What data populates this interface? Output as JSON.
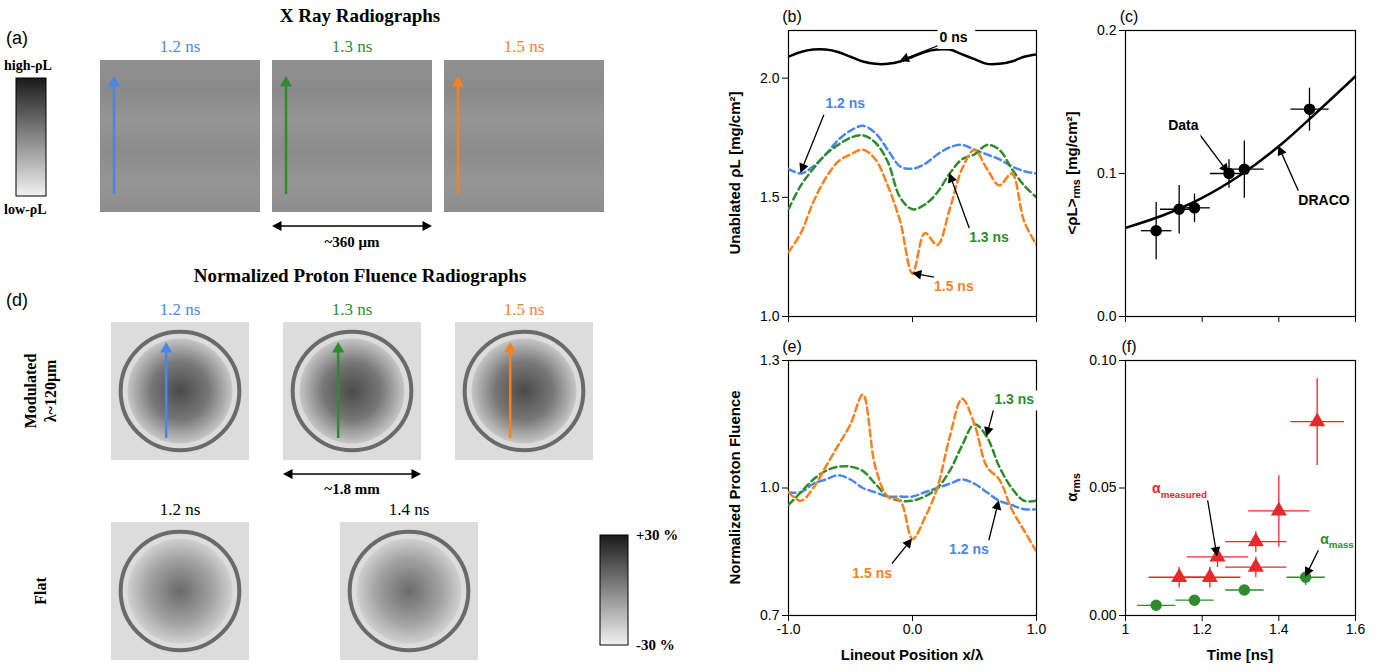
{
  "figure": {
    "panel_a": {
      "letter": "(a)",
      "title": "X Ray Radiographs",
      "scale_high": "high-ρL",
      "scale_low": "low-ρL",
      "images": [
        {
          "label": "1.2 ns",
          "color": "#4a86e8"
        },
        {
          "label": "1.3 ns",
          "color": "#2e8b2e"
        },
        {
          "label": "1.5 ns",
          "color": "#f5821f"
        }
      ],
      "dimension": "~360 μm"
    },
    "panel_d": {
      "letter": "(d)",
      "title": "Normalized Proton Fluence Radiographs",
      "rows": [
        {
          "label": "Modulated λ~120μm",
          "images": [
            {
              "label": "1.2 ns",
              "color": "#4a86e8"
            },
            {
              "label": "1.3 ns",
              "color": "#2e8b2e"
            },
            {
              "label": "1.5 ns",
              "color": "#f5821f"
            }
          ]
        },
        {
          "label": "Flat",
          "images": [
            {
              "label": "1.2 ns",
              "color": "#000000"
            },
            {
              "label": "1.4 ns",
              "color": "#000000"
            }
          ]
        }
      ],
      "dimension": "~1.8 mm",
      "colorbar": {
        "range": [
          -30,
          30
        ],
        "ticks": [
          {
            "value": 30,
            "label": "+30 %"
          },
          {
            "value": -30,
            "label": "-30 %"
          }
        ]
      }
    }
  },
  "chart_data": [
    {
      "letter": "(b)",
      "type": "line",
      "ylabel": {
        "text": "Unablated ρL",
        "unit": "[mg/cm²]"
      },
      "xlim": [
        -1,
        1
      ],
      "xticks": [
        -1,
        0,
        1
      ],
      "ylim": [
        1.0,
        2.2
      ],
      "yticks": [
        {
          "value": 1,
          "label": "1.0"
        },
        1.5,
        {
          "value": 2,
          "label": "2.0"
        }
      ],
      "tick_labels": "y",
      "x": [
        -1,
        -0.9,
        -0.8,
        -0.7,
        -0.6,
        -0.5,
        -0.4,
        -0.3,
        -0.2,
        -0.1,
        0,
        0.1,
        0.2,
        0.3,
        0.4,
        0.5,
        0.6,
        0.7,
        0.8,
        0.9,
        1
      ],
      "series": [
        {
          "name": "0 ns",
          "color": "#000000",
          "line_style": "solid",
          "values": [
            2.09,
            2.11,
            2.12,
            2.12,
            2.11,
            2.09,
            2.07,
            2.06,
            2.06,
            2.07,
            2.09,
            2.11,
            2.12,
            2.12,
            2.1,
            2.08,
            2.06,
            2.06,
            2.07,
            2.09,
            2.1
          ]
        },
        {
          "name": "1.2 ns",
          "color": "#4a86e8",
          "line_style": "dashed",
          "values": [
            1.62,
            1.6,
            1.63,
            1.68,
            1.74,
            1.78,
            1.8,
            1.77,
            1.7,
            1.63,
            1.62,
            1.64,
            1.68,
            1.71,
            1.72,
            1.7,
            1.68,
            1.66,
            1.63,
            1.61,
            1.6
          ]
        },
        {
          "name": "1.3 ns",
          "color": "#2e8b2e",
          "line_style": "dashed",
          "values": [
            1.45,
            1.55,
            1.62,
            1.68,
            1.72,
            1.75,
            1.76,
            1.73,
            1.65,
            1.5,
            1.45,
            1.47,
            1.52,
            1.6,
            1.66,
            1.68,
            1.72,
            1.7,
            1.62,
            1.55,
            1.5
          ]
        },
        {
          "name": "1.5 ns",
          "color": "#f5821f",
          "line_style": "dashed",
          "values": [
            1.27,
            1.35,
            1.48,
            1.58,
            1.65,
            1.68,
            1.7,
            1.66,
            1.55,
            1.4,
            1.18,
            1.35,
            1.3,
            1.45,
            1.62,
            1.7,
            1.62,
            1.55,
            1.6,
            1.4,
            1.3
          ]
        }
      ]
    },
    {
      "letter": "(c)",
      "type": "scatter",
      "ylabel": {
        "text": "<ρL>",
        "subscript": "rms",
        "unit": "[mg/cm²]"
      },
      "xlim": [
        1,
        1.6
      ],
      "xticks": [
        1,
        1.2,
        1.4,
        1.6
      ],
      "ylim": [
        0,
        0.2
      ],
      "yticks": [
        {
          "value": 0,
          "label": "0.0"
        },
        0.1,
        0.2
      ],
      "tick_labels": "y",
      "series": [
        {
          "name": "Data",
          "type": "scatter",
          "marker": "circle",
          "color": "#000000",
          "x": [
            1.08,
            1.14,
            1.18,
            1.27,
            1.31,
            1.48
          ],
          "values": [
            0.06,
            0.075,
            0.076,
            0.1,
            0.103,
            0.145
          ],
          "xerr": [
            0.04,
            0.05,
            0.04,
            0.05,
            0.05,
            0.05
          ],
          "yerr": [
            0.02,
            0.017,
            0.01,
            0.01,
            0.02,
            0.015
          ]
        },
        {
          "name": "DRACO",
          "type": "line",
          "line_style": "solid",
          "color": "#000000",
          "x": [
            1.0,
            1.1,
            1.2,
            1.3,
            1.4,
            1.5,
            1.6
          ],
          "values": [
            0.062,
            0.071,
            0.083,
            0.099,
            0.119,
            0.143,
            0.168
          ]
        }
      ]
    },
    {
      "letter": "(e)",
      "type": "line",
      "xlabel": "Lineout Position x/λ",
      "ylabel": {
        "text": "Normalized Proton Fluence"
      },
      "xlim": [
        -1,
        1
      ],
      "xticks": [
        {
          "value": -1,
          "label": "-1.0"
        },
        {
          "value": 0,
          "label": "0.0"
        },
        {
          "value": 1,
          "label": "1.0"
        }
      ],
      "ylim": [
        0.7,
        1.3
      ],
      "yticks": [
        0.7,
        {
          "value": 1,
          "label": "1.0"
        },
        1.3
      ],
      "x": [
        -1,
        -0.9,
        -0.8,
        -0.7,
        -0.6,
        -0.5,
        -0.4,
        -0.3,
        -0.2,
        -0.1,
        0,
        0.1,
        0.2,
        0.3,
        0.4,
        0.5,
        0.6,
        0.7,
        0.8,
        0.9,
        1
      ],
      "series": [
        {
          "name": "1.2 ns",
          "color": "#4a86e8",
          "line_style": "dashed",
          "values": [
            0.99,
            0.99,
            1.01,
            1.02,
            1.03,
            1.02,
            1.0,
            0.99,
            0.98,
            0.98,
            0.98,
            0.99,
            1.0,
            1.01,
            1.02,
            1.01,
            0.99,
            0.97,
            0.96,
            0.95,
            0.95
          ]
        },
        {
          "name": "1.3 ns",
          "color": "#2e8b2e",
          "line_style": "dashed",
          "values": [
            0.96,
            0.99,
            1.02,
            1.04,
            1.05,
            1.05,
            1.04,
            1.01,
            0.98,
            0.97,
            0.97,
            0.98,
            1.0,
            1.04,
            1.1,
            1.15,
            1.12,
            1.05,
            1.0,
            0.97,
            0.97
          ]
        },
        {
          "name": "1.5 ns",
          "color": "#f5821f",
          "line_style": "dashed",
          "values": [
            0.99,
            0.97,
            1.0,
            1.05,
            1.1,
            1.15,
            1.22,
            1.05,
            0.98,
            0.97,
            0.88,
            0.93,
            1.0,
            1.12,
            1.21,
            1.15,
            1.05,
            1.02,
            0.95,
            0.9,
            0.85
          ]
        }
      ]
    },
    {
      "letter": "(f)",
      "type": "scatter",
      "xlabel": "Time [ns]",
      "ylabel": {
        "text": "α",
        "subscript": "rms"
      },
      "xlim": [
        1,
        1.6
      ],
      "xticks": [
        1,
        1.2,
        1.4,
        1.6
      ],
      "ylim": [
        0,
        0.1
      ],
      "yticks": [
        {
          "value": 0,
          "label": "0.00"
        },
        {
          "value": 0.05,
          "label": "0.05"
        },
        {
          "value": 0.1,
          "label": "0.10"
        }
      ],
      "series": [
        {
          "name": "α",
          "subscript": "measured",
          "marker": "triangle",
          "color": "#e8282b",
          "x": [
            1.14,
            1.22,
            1.24,
            1.34,
            1.34,
            1.4,
            1.5
          ],
          "values": [
            0.015,
            0.015,
            0.023,
            0.029,
            0.019,
            0.041,
            0.076
          ],
          "xerr": [
            0.08,
            0.08,
            0.08,
            0.08,
            0.08,
            0.08,
            0.07
          ],
          "yerr": [
            0.004,
            0.004,
            0.004,
            0.004,
            0.004,
            0.014,
            0.017
          ]
        },
        {
          "name": "α",
          "subscript": "mass",
          "marker": "circle",
          "color": "#2e8b2e",
          "x": [
            1.08,
            1.18,
            1.31,
            1.47
          ],
          "values": [
            0.004,
            0.006,
            0.01,
            0.015
          ],
          "xerr": [
            0.05,
            0.05,
            0.05,
            0.05
          ],
          "yerr": [
            0.002,
            0.002,
            0.002,
            0.003
          ]
        }
      ]
    }
  ]
}
